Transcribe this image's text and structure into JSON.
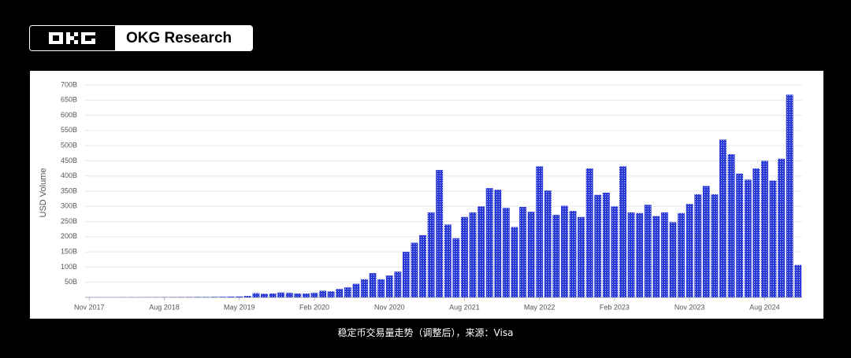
{
  "header": {
    "brand": "OKG Research"
  },
  "chart_data": {
    "type": "bar",
    "y_label": "USD Volume",
    "categories": [
      "Nov 2017",
      null,
      null,
      null,
      null,
      null,
      null,
      null,
      null,
      "Aug 2018",
      null,
      null,
      null,
      null,
      null,
      null,
      null,
      null,
      "May 2019",
      null,
      null,
      null,
      null,
      null,
      null,
      null,
      null,
      "Feb 2020",
      null,
      null,
      null,
      null,
      null,
      null,
      null,
      null,
      "Nov 2020",
      null,
      null,
      null,
      null,
      null,
      null,
      null,
      null,
      "Aug 2021",
      null,
      null,
      null,
      null,
      null,
      null,
      null,
      null,
      "May 2022",
      null,
      null,
      null,
      null,
      null,
      null,
      null,
      null,
      "Feb 2023",
      null,
      null,
      null,
      null,
      null,
      null,
      null,
      null,
      "Nov 2023",
      null,
      null,
      null,
      null,
      null,
      null,
      null,
      null,
      "Aug 2024",
      null,
      null,
      null,
      null
    ],
    "values": [
      0.5,
      0.5,
      0.5,
      0.5,
      0.6,
      0.6,
      0.7,
      0.8,
      0.8,
      1,
      1,
      1.2,
      1.3,
      1.5,
      1.5,
      1.8,
      2,
      2.5,
      3,
      5,
      14,
      12,
      13,
      16,
      15,
      13,
      13,
      15,
      22,
      20,
      28,
      33,
      45,
      60,
      80,
      60,
      72,
      85,
      150,
      180,
      205,
      280,
      420,
      240,
      195,
      265,
      280,
      300,
      360,
      355,
      295,
      232,
      298,
      282,
      432,
      352,
      272,
      302,
      285,
      265,
      425,
      338,
      345,
      300,
      432,
      280,
      278,
      305,
      268,
      280,
      248,
      278,
      308,
      340,
      367,
      340,
      520,
      472,
      408,
      388,
      425,
      450,
      385,
      457,
      668,
      107
    ],
    "color": "#2a3ad6",
    "ylim": [
      0,
      700
    ],
    "yticks": [
      {
        "value": 50,
        "label": "50B"
      },
      {
        "value": 100,
        "label": "100B"
      },
      {
        "value": 150,
        "label": "150B"
      },
      {
        "value": 200,
        "label": "200B"
      },
      {
        "value": 250,
        "label": "250B"
      },
      {
        "value": 300,
        "label": "300B"
      },
      {
        "value": 350,
        "label": "350B"
      },
      {
        "value": 400,
        "label": "400B"
      },
      {
        "value": 450,
        "label": "450B"
      },
      {
        "value": 500,
        "label": "500B"
      },
      {
        "value": 550,
        "label": "550B"
      },
      {
        "value": 600,
        "label": "600B"
      },
      {
        "value": 650,
        "label": "650B"
      },
      {
        "value": 700,
        "label": "700B"
      }
    ],
    "grid": true
  },
  "caption": "稳定币交易量走势（调整后），来源：Visa"
}
